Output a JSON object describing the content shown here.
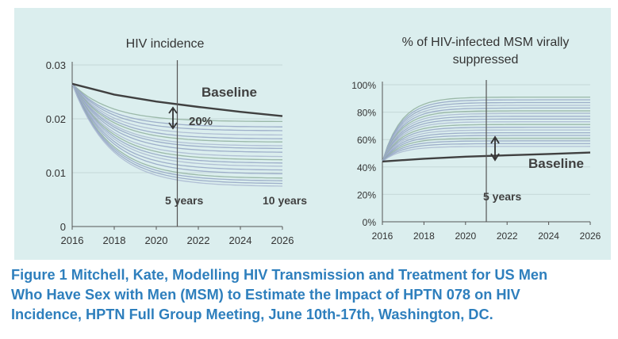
{
  "chart_data": [
    {
      "type": "line",
      "title": "HIV incidence",
      "xlabel": "",
      "ylabel": "",
      "x_ticks": [
        2016,
        2018,
        2020,
        2022,
        2024,
        2026
      ],
      "y_ticks": [
        "0",
        "0.01",
        "0.02",
        "0.03"
      ],
      "xlim": [
        2016,
        2026
      ],
      "ylim": [
        0,
        0.03
      ],
      "series": [
        {
          "name": "Baseline",
          "color": "#404040",
          "x": [
            2016,
            2018,
            2020,
            2022,
            2024,
            2026
          ],
          "values": [
            0.0265,
            0.0245,
            0.0232,
            0.0222,
            0.0213,
            0.0205
          ]
        }
      ],
      "scenario_endpoints_2026": [
        0.0195,
        0.0185,
        0.0178,
        0.017,
        0.0163,
        0.0157,
        0.015,
        0.0145,
        0.0138,
        0.013,
        0.0124,
        0.0118,
        0.0112,
        0.0105,
        0.0098,
        0.009,
        0.0085,
        0.008,
        0.0075
      ],
      "annotations": {
        "baseline_label": "Baseline",
        "reduction_label": "20%",
        "marker_5": "5 years",
        "marker_10": "10 years"
      },
      "grid": true
    },
    {
      "type": "line",
      "title": "% of HIV-infected MSM virally suppressed",
      "xlabel": "",
      "ylabel": "",
      "x_ticks": [
        2016,
        2018,
        2020,
        2022,
        2024,
        2026
      ],
      "y_ticks": [
        "0%",
        "20%",
        "40%",
        "60%",
        "80%",
        "100%"
      ],
      "xlim": [
        2016,
        2026
      ],
      "ylim": [
        0,
        100
      ],
      "series": [
        {
          "name": "Baseline",
          "color": "#404040",
          "x": [
            2016,
            2018,
            2020,
            2022,
            2024,
            2026
          ],
          "values": [
            44,
            46,
            47.5,
            48.5,
            49.5,
            50.5
          ]
        }
      ],
      "scenario_endpoints_2026": [
        91,
        89,
        87,
        85,
        83,
        81,
        79,
        77,
        75,
        73,
        71,
        69,
        67,
        65,
        63,
        61,
        59,
        57,
        55
      ],
      "annotations": {
        "baseline_label": "Baseline",
        "marker_5": "5 years"
      },
      "grid": true
    }
  ],
  "caption": {
    "line1": "Figure 1 Mitchell, Kate, Modelling HIV Transmission and Treatment for US Men",
    "line2": "Who Have Sex with Men (MSM) to Estimate the Impact of HPTN 078 on HIV",
    "line3": "Incidence, HPTN Full Group Meeting, June 10th-17th, Washington, DC."
  },
  "colors": {
    "slide_background": "#dbeeee",
    "caption_text": "#2e7fbd",
    "baseline_line": "#404040",
    "scenario_lines": "#9aa9c4"
  }
}
